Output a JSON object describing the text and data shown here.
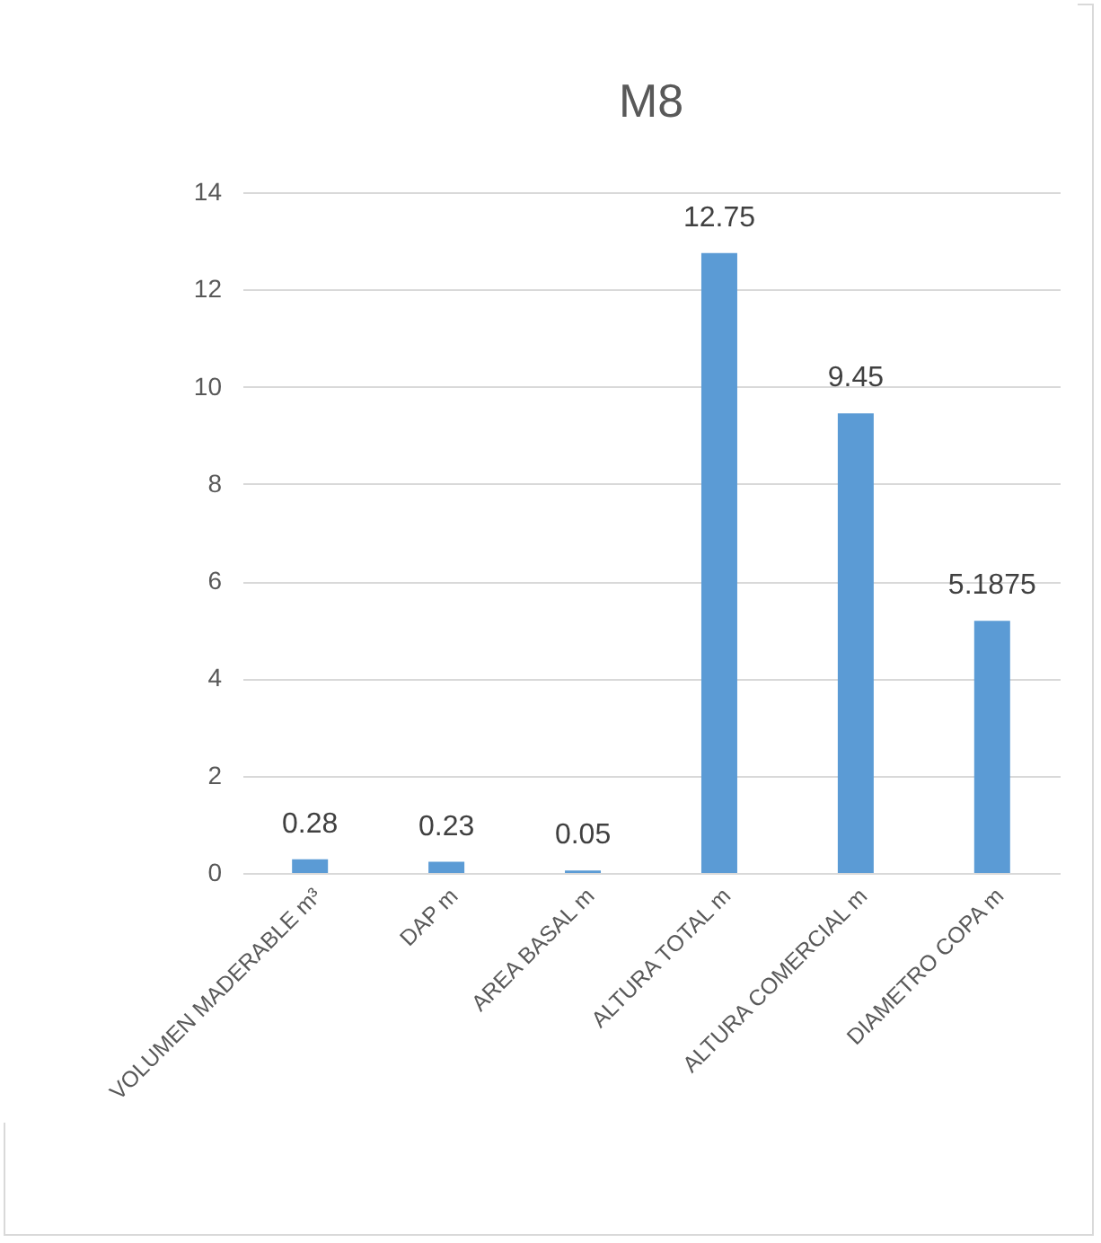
{
  "chart_data": {
    "type": "bar",
    "title": "M8",
    "categories": [
      "VOLUMEN MADERABLE m³",
      "DAP m",
      "AREA BASAL m",
      "ALTURA TOTAL m",
      "ALTURA COMERCIAL m",
      "DIAMETRO COPA m"
    ],
    "values": [
      0.28,
      0.23,
      0.05,
      12.75,
      9.45,
      5.1875
    ],
    "color": "#5b9bd5",
    "ylim": [
      0,
      14
    ],
    "yticks": [
      0,
      2,
      4,
      6,
      8,
      10,
      12,
      14
    ],
    "grid": "y",
    "data_labels": true
  }
}
